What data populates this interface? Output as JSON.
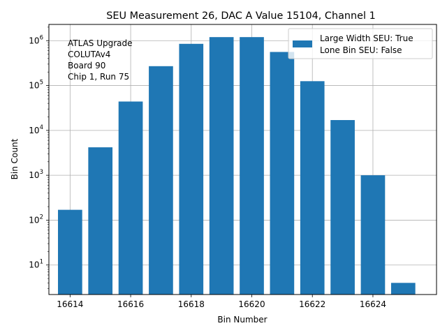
{
  "chart_data": {
    "type": "bar",
    "title": "SEU Measurement 26, DAC A Value 15104, Channel 1",
    "xlabel": "Bin Number",
    "ylabel": "Bin Count",
    "yscale": "log",
    "ylim": [
      2.2,
      2300000
    ],
    "xlim": [
      16613.3,
      16626.1
    ],
    "grid": true,
    "legend_position": "top-right",
    "bar_color": "#1f77b4",
    "x": [
      16614,
      16615,
      16616,
      16617,
      16618,
      16619,
      16620,
      16621,
      16622,
      16623,
      16624,
      16625
    ],
    "values": [
      170,
      4200,
      44000,
      270000,
      850000,
      1200000,
      1200000,
      560000,
      125000,
      17000,
      1000,
      4
    ],
    "xticks": [
      {
        "value": 16614,
        "label": "16614"
      },
      {
        "value": 16616,
        "label": "16616"
      },
      {
        "value": 16618,
        "label": "16618"
      },
      {
        "value": 16620,
        "label": "16620"
      },
      {
        "value": 16622,
        "label": "16622"
      },
      {
        "value": 16624,
        "label": "16624"
      }
    ],
    "yticks": [
      {
        "value": 10,
        "base": "10",
        "exp": "1"
      },
      {
        "value": 100,
        "base": "10",
        "exp": "2"
      },
      {
        "value": 1000,
        "base": "10",
        "exp": "3"
      },
      {
        "value": 10000,
        "base": "10",
        "exp": "4"
      },
      {
        "value": 100000,
        "base": "10",
        "exp": "5"
      },
      {
        "value": 1000000,
        "base": "10",
        "exp": "6"
      }
    ],
    "legend": [
      "Large Width SEU: True",
      "Lone Bin SEU: False"
    ],
    "annotation": [
      "ATLAS Upgrade",
      "COLUTAv4",
      " Board 90",
      "Chip 1, Run 75"
    ]
  }
}
